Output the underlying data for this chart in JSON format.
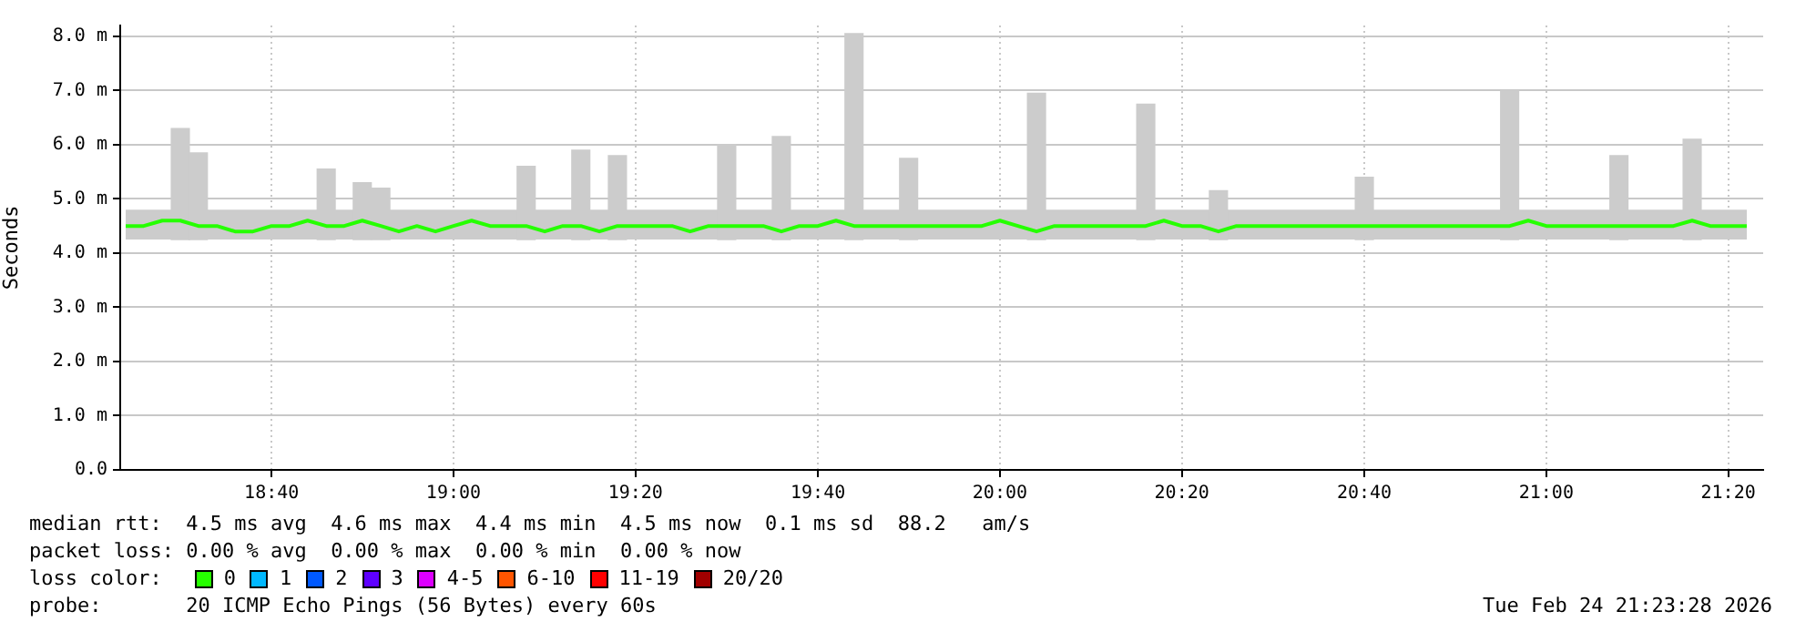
{
  "chart_data": {
    "type": "bar",
    "ylabel": "Seconds",
    "legend_title": "loss color:",
    "legend": "bottom",
    "grid": true,
    "annotations": [
      "median rtt:  4.5 ms avg  4.6 ms max  4.4 ms min  4.5 ms now  0.1 ms sd  88.2   am/s",
      "packet loss: 0.00 % avg  0.00 % max  0.00 % min  0.00 % now",
      "probe:       20 ICMP Echo Pings (56 Bytes) every 60s",
      "Tue Feb 24 21:23:28 2026"
    ],
    "x": [
      18.4,
      18.433,
      18.467,
      18.5,
      18.533,
      18.567,
      18.6,
      18.633,
      18.667,
      18.7,
      18.733,
      18.767,
      18.8,
      18.833,
      18.867,
      18.9,
      18.933,
      18.967,
      19,
      19.033,
      19.067,
      19.1,
      19.133,
      19.167,
      19.2,
      19.233,
      19.267,
      19.3,
      19.333,
      19.367,
      19.4,
      19.433,
      19.467,
      19.5,
      19.533,
      19.567,
      19.6,
      19.633,
      19.667,
      19.7,
      19.733,
      19.767,
      19.8,
      19.833,
      19.867,
      19.9,
      19.933,
      19.967,
      20,
      20.033,
      20.067,
      20.1,
      20.133,
      20.167,
      20.2,
      20.233,
      20.267,
      20.3,
      20.333,
      20.367,
      20.4,
      20.433,
      20.467,
      20.5,
      20.533,
      20.567,
      20.6,
      20.633,
      20.667,
      20.7,
      20.733,
      20.767,
      20.8,
      20.833,
      20.867,
      20.9,
      20.933,
      20.967,
      21,
      21.033,
      21.067,
      21.1,
      21.133,
      21.167,
      21.2,
      21.233,
      21.267,
      21.3,
      21.333,
      21.367
    ],
    "xlim": [
      18.39,
      21.397
    ],
    "xticks": [
      {
        "value": 18.667,
        "label": "18:40"
      },
      {
        "value": 19,
        "label": "19:00"
      },
      {
        "value": 19.333,
        "label": "19:20"
      },
      {
        "value": 19.667,
        "label": "19:40"
      },
      {
        "value": 20,
        "label": "20:00"
      },
      {
        "value": 20.333,
        "label": "20:20"
      },
      {
        "value": 20.667,
        "label": "20:40"
      },
      {
        "value": 21,
        "label": "21:00"
      },
      {
        "value": 21.333,
        "label": "21:20"
      }
    ],
    "ylim": [
      0,
      8.2
    ],
    "yticks": [
      {
        "value": 0,
        "label": "0.0"
      },
      {
        "value": 1,
        "label": "1.0 m"
      },
      {
        "value": 2,
        "label": "2.0 m"
      },
      {
        "value": 3,
        "label": "3.0 m"
      },
      {
        "value": 4,
        "label": "4.0 m"
      },
      {
        "value": 5,
        "label": "5.0 m"
      },
      {
        "value": 6,
        "label": "6.0 m"
      },
      {
        "value": 7,
        "label": "7.0 m"
      },
      {
        "value": 8,
        "label": "8.0 m"
      }
    ],
    "series": [
      {
        "color": "#cccccc",
        "x": [
          18.5,
          18.533,
          18.767,
          18.833,
          18.867,
          19.133,
          19.233,
          19.3,
          19.5,
          19.6,
          19.733,
          19.833,
          20.067,
          20.267,
          20.4,
          20.667,
          20.933,
          21.133,
          21.267
        ],
        "base": [
          4.25,
          4.25,
          4.25,
          4.25,
          4.25,
          4.25,
          4.25,
          4.25,
          4.25,
          4.25,
          4.25,
          4.25,
          4.25,
          4.25,
          4.25,
          4.25,
          4.25,
          4.25,
          4.25
        ],
        "values": [
          2.05,
          1.6,
          1.3,
          1.05,
          0.95,
          1.35,
          1.65,
          1.55,
          1.75,
          1.9,
          3.8,
          1.5,
          2.7,
          2.5,
          0.9,
          1.15,
          2.75,
          1.55,
          1.85
        ]
      },
      {
        "type": "line",
        "name": "0",
        "color": "#26ff00",
        "lower": [
          4.25,
          4.25,
          4.25,
          4.25,
          4.25,
          4.25,
          4.25,
          4.25,
          4.25,
          4.25,
          4.25,
          4.25,
          4.25,
          4.25,
          4.25,
          4.25,
          4.25,
          4.25,
          4.25,
          4.25,
          4.25,
          4.25,
          4.25,
          4.25,
          4.25,
          4.25,
          4.25,
          4.25,
          4.25,
          4.25,
          4.25,
          4.25,
          4.25,
          4.25,
          4.25,
          4.25,
          4.25,
          4.25,
          4.25,
          4.25,
          4.25,
          4.25,
          4.25,
          4.25,
          4.25,
          4.25,
          4.25,
          4.25,
          4.25,
          4.25,
          4.25,
          4.25,
          4.25,
          4.25,
          4.25,
          4.25,
          4.25,
          4.25,
          4.25,
          4.25,
          4.25,
          4.25,
          4.25,
          4.25,
          4.25,
          4.25,
          4.25,
          4.25,
          4.25,
          4.25,
          4.25,
          4.25,
          4.25,
          4.25,
          4.25,
          4.25,
          4.25,
          4.25,
          4.25,
          4.25,
          4.25,
          4.25,
          4.25,
          4.25,
          4.25,
          4.25,
          4.25,
          4.25,
          4.25,
          4.25
        ],
        "upper": [
          4.8,
          4.8,
          4.8,
          4.8,
          4.8,
          4.8,
          4.8,
          4.8,
          4.8,
          4.8,
          4.8,
          4.8,
          4.8,
          4.8,
          4.8,
          4.8,
          4.8,
          4.8,
          4.8,
          4.8,
          4.8,
          4.8,
          4.8,
          4.8,
          4.8,
          4.8,
          4.8,
          4.8,
          4.8,
          4.8,
          4.8,
          4.8,
          4.8,
          4.8,
          4.8,
          4.8,
          4.8,
          4.8,
          4.8,
          4.8,
          4.8,
          4.8,
          4.8,
          4.8,
          4.8,
          4.8,
          4.8,
          4.8,
          4.8,
          4.8,
          4.8,
          4.8,
          4.8,
          4.8,
          4.8,
          4.8,
          4.8,
          4.8,
          4.8,
          4.8,
          4.8,
          4.8,
          4.8,
          4.8,
          4.8,
          4.8,
          4.8,
          4.8,
          4.8,
          4.8,
          4.8,
          4.8,
          4.8,
          4.8,
          4.8,
          4.8,
          4.8,
          4.8,
          4.8,
          4.8,
          4.8,
          4.8,
          4.8,
          4.8,
          4.8,
          4.8,
          4.8,
          4.8,
          4.8,
          4.8
        ],
        "values": [
          4.5,
          4.5,
          4.6,
          4.6,
          4.5,
          4.5,
          4.4,
          4.4,
          4.5,
          4.5,
          4.6,
          4.5,
          4.5,
          4.6,
          4.5,
          4.4,
          4.5,
          4.4,
          4.5,
          4.6,
          4.5,
          4.5,
          4.5,
          4.4,
          4.5,
          4.5,
          4.4,
          4.5,
          4.5,
          4.5,
          4.5,
          4.4,
          4.5,
          4.5,
          4.5,
          4.5,
          4.4,
          4.5,
          4.5,
          4.6,
          4.5,
          4.5,
          4.5,
          4.5,
          4.5,
          4.5,
          4.5,
          4.5,
          4.6,
          4.5,
          4.4,
          4.5,
          4.5,
          4.5,
          4.5,
          4.5,
          4.5,
          4.6,
          4.5,
          4.5,
          4.4,
          4.5,
          4.5,
          4.5,
          4.5,
          4.5,
          4.5,
          4.5,
          4.5,
          4.5,
          4.5,
          4.5,
          4.5,
          4.5,
          4.5,
          4.5,
          4.5,
          4.6,
          4.5,
          4.5,
          4.5,
          4.5,
          4.5,
          4.5,
          4.5,
          4.5,
          4.6,
          4.5,
          4.5,
          4.5
        ]
      },
      {
        "type": "line",
        "name": "1",
        "color": "#00b8ff",
        "values": [
          null,
          null,
          null,
          null,
          null,
          null,
          null,
          null,
          null,
          null,
          null,
          null,
          null,
          null,
          null,
          null,
          null,
          null,
          null,
          null,
          null,
          null,
          null,
          null,
          null,
          null,
          null,
          null,
          null,
          null,
          null,
          null,
          null,
          null,
          null,
          null,
          null,
          null,
          null,
          null,
          null,
          null,
          null,
          null,
          null,
          null,
          null,
          null,
          null,
          null,
          null,
          null,
          null,
          null,
          null,
          null,
          null,
          null,
          null,
          null,
          null,
          null,
          null,
          null,
          null,
          null,
          null,
          null,
          null,
          null,
          null,
          null,
          null,
          null,
          null,
          null,
          null,
          null,
          null,
          null,
          null,
          null,
          null,
          null,
          null,
          null,
          null,
          null,
          null,
          null
        ]
      },
      {
        "type": "line",
        "name": "2",
        "color": "#0059ff",
        "values": [
          null,
          null,
          null,
          null,
          null,
          null,
          null,
          null,
          null,
          null,
          null,
          null,
          null,
          null,
          null,
          null,
          null,
          null,
          null,
          null,
          null,
          null,
          null,
          null,
          null,
          null,
          null,
          null,
          null,
          null,
          null,
          null,
          null,
          null,
          null,
          null,
          null,
          null,
          null,
          null,
          null,
          null,
          null,
          null,
          null,
          null,
          null,
          null,
          null,
          null,
          null,
          null,
          null,
          null,
          null,
          null,
          null,
          null,
          null,
          null,
          null,
          null,
          null,
          null,
          null,
          null,
          null,
          null,
          null,
          null,
          null,
          null,
          null,
          null,
          null,
          null,
          null,
          null,
          null,
          null,
          null,
          null,
          null,
          null,
          null,
          null,
          null,
          null,
          null,
          null
        ]
      },
      {
        "type": "line",
        "name": "3",
        "color": "#5e00ff",
        "values": [
          null,
          null,
          null,
          null,
          null,
          null,
          null,
          null,
          null,
          null,
          null,
          null,
          null,
          null,
          null,
          null,
          null,
          null,
          null,
          null,
          null,
          null,
          null,
          null,
          null,
          null,
          null,
          null,
          null,
          null,
          null,
          null,
          null,
          null,
          null,
          null,
          null,
          null,
          null,
          null,
          null,
          null,
          null,
          null,
          null,
          null,
          null,
          null,
          null,
          null,
          null,
          null,
          null,
          null,
          null,
          null,
          null,
          null,
          null,
          null,
          null,
          null,
          null,
          null,
          null,
          null,
          null,
          null,
          null,
          null,
          null,
          null,
          null,
          null,
          null,
          null,
          null,
          null,
          null,
          null,
          null,
          null,
          null,
          null,
          null,
          null,
          null,
          null,
          null,
          null
        ]
      },
      {
        "type": "line",
        "name": "4-5",
        "color": "#dd00ff",
        "values": [
          null,
          null,
          null,
          null,
          null,
          null,
          null,
          null,
          null,
          null,
          null,
          null,
          null,
          null,
          null,
          null,
          null,
          null,
          null,
          null,
          null,
          null,
          null,
          null,
          null,
          null,
          null,
          null,
          null,
          null,
          null,
          null,
          null,
          null,
          null,
          null,
          null,
          null,
          null,
          null,
          null,
          null,
          null,
          null,
          null,
          null,
          null,
          null,
          null,
          null,
          null,
          null,
          null,
          null,
          null,
          null,
          null,
          null,
          null,
          null,
          null,
          null,
          null,
          null,
          null,
          null,
          null,
          null,
          null,
          null,
          null,
          null,
          null,
          null,
          null,
          null,
          null,
          null,
          null,
          null,
          null,
          null,
          null,
          null,
          null,
          null,
          null,
          null,
          null,
          null
        ]
      },
      {
        "type": "line",
        "name": "6-10",
        "color": "#ff5500",
        "values": [
          null,
          null,
          null,
          null,
          null,
          null,
          null,
          null,
          null,
          null,
          null,
          null,
          null,
          null,
          null,
          null,
          null,
          null,
          null,
          null,
          null,
          null,
          null,
          null,
          null,
          null,
          null,
          null,
          null,
          null,
          null,
          null,
          null,
          null,
          null,
          null,
          null,
          null,
          null,
          null,
          null,
          null,
          null,
          null,
          null,
          null,
          null,
          null,
          null,
          null,
          null,
          null,
          null,
          null,
          null,
          null,
          null,
          null,
          null,
          null,
          null,
          null,
          null,
          null,
          null,
          null,
          null,
          null,
          null,
          null,
          null,
          null,
          null,
          null,
          null,
          null,
          null,
          null,
          null,
          null,
          null,
          null,
          null,
          null,
          null,
          null,
          null,
          null,
          null,
          null
        ]
      },
      {
        "type": "line",
        "name": "11-19",
        "color": "#ff0000",
        "values": [
          null,
          null,
          null,
          null,
          null,
          null,
          null,
          null,
          null,
          null,
          null,
          null,
          null,
          null,
          null,
          null,
          null,
          null,
          null,
          null,
          null,
          null,
          null,
          null,
          null,
          null,
          null,
          null,
          null,
          null,
          null,
          null,
          null,
          null,
          null,
          null,
          null,
          null,
          null,
          null,
          null,
          null,
          null,
          null,
          null,
          null,
          null,
          null,
          null,
          null,
          null,
          null,
          null,
          null,
          null,
          null,
          null,
          null,
          null,
          null,
          null,
          null,
          null,
          null,
          null,
          null,
          null,
          null,
          null,
          null,
          null,
          null,
          null,
          null,
          null,
          null,
          null,
          null,
          null,
          null,
          null,
          null,
          null,
          null,
          null,
          null,
          null,
          null,
          null,
          null
        ]
      },
      {
        "type": "line",
        "name": "20/20",
        "color": "#a10000",
        "values": [
          null,
          null,
          null,
          null,
          null,
          null,
          null,
          null,
          null,
          null,
          null,
          null,
          null,
          null,
          null,
          null,
          null,
          null,
          null,
          null,
          null,
          null,
          null,
          null,
          null,
          null,
          null,
          null,
          null,
          null,
          null,
          null,
          null,
          null,
          null,
          null,
          null,
          null,
          null,
          null,
          null,
          null,
          null,
          null,
          null,
          null,
          null,
          null,
          null,
          null,
          null,
          null,
          null,
          null,
          null,
          null,
          null,
          null,
          null,
          null,
          null,
          null,
          null,
          null,
          null,
          null,
          null,
          null,
          null,
          null,
          null,
          null,
          null,
          null,
          null,
          null,
          null,
          null,
          null,
          null,
          null,
          null,
          null,
          null,
          null,
          null,
          null,
          null,
          null,
          null
        ]
      }
    ]
  }
}
